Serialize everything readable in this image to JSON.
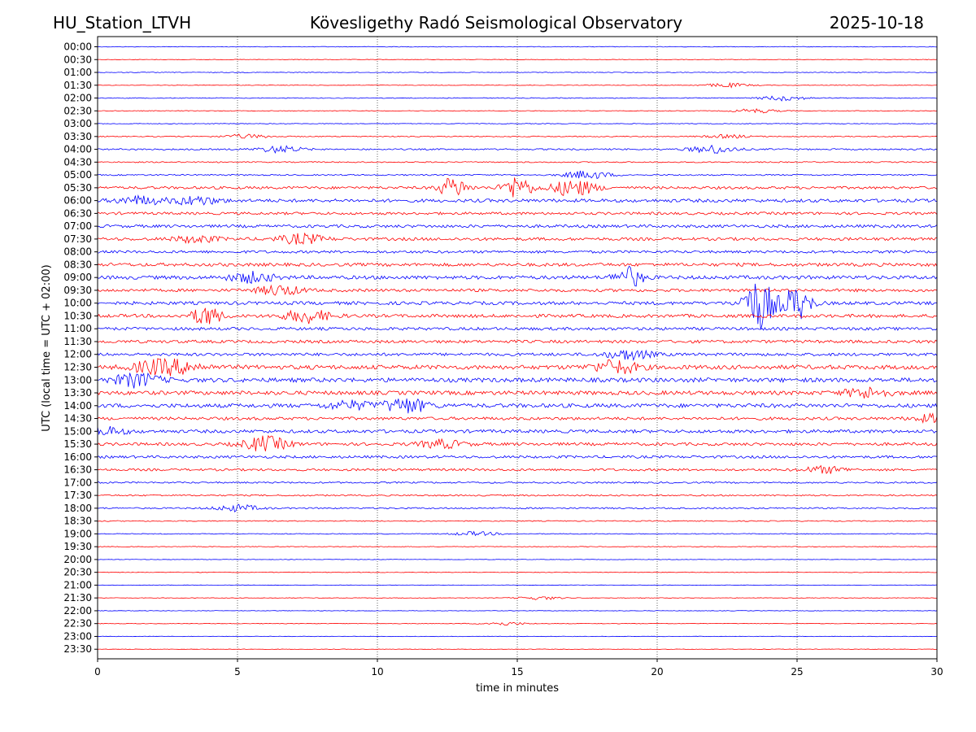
{
  "header": {
    "station": "HU_Station_LTVH",
    "observatory": "Kövesligethy Radó Seismological Observatory",
    "date": "2025-10-18"
  },
  "chart_data": {
    "type": "line",
    "subtype": "helicorder",
    "xlabel": "time in minutes",
    "ylabel": "UTC (local time = UTC + 02:00)",
    "xlim": [
      0,
      30
    ],
    "x_ticks": [
      0,
      5,
      10,
      15,
      20,
      25,
      30
    ],
    "x_tick_labels": [
      "0",
      "5",
      "10",
      "15",
      "20",
      "25",
      "30"
    ],
    "grid": "vertical dotted lines at x ticks",
    "colors": [
      "#0000ff",
      "#ff0000"
    ],
    "row_labels": [
      "00:00",
      "00:30",
      "01:00",
      "01:30",
      "02:00",
      "02:30",
      "03:00",
      "03:30",
      "04:00",
      "04:30",
      "05:00",
      "05:30",
      "06:00",
      "06:30",
      "07:00",
      "07:30",
      "08:00",
      "08:30",
      "09:00",
      "09:30",
      "10:00",
      "10:30",
      "11:00",
      "11:30",
      "12:00",
      "12:30",
      "13:00",
      "13:30",
      "14:00",
      "14:30",
      "15:00",
      "15:30",
      "16:00",
      "16:30",
      "17:00",
      "17:30",
      "18:00",
      "18:30",
      "19:00",
      "19:30",
      "20:00",
      "20:30",
      "21:00",
      "21:30",
      "22:00",
      "22:30",
      "23:00",
      "23:30"
    ],
    "noise_levels": [
      0.4,
      0.35,
      0.4,
      0.35,
      0.5,
      0.4,
      0.4,
      0.6,
      0.9,
      0.7,
      0.8,
      1.6,
      2.0,
      1.6,
      1.8,
      1.8,
      1.6,
      2.0,
      2.2,
      1.8,
      2.0,
      2.0,
      1.8,
      1.8,
      1.8,
      2.6,
      2.6,
      2.4,
      2.4,
      1.8,
      2.0,
      1.8,
      1.6,
      1.4,
      1.0,
      0.9,
      0.9,
      0.6,
      0.5,
      0.4,
      0.3,
      0.4,
      0.3,
      0.35,
      0.3,
      0.35,
      0.3,
      0.3
    ],
    "events": [
      {
        "row": 3,
        "minute": 22.5,
        "amp": 2.5
      },
      {
        "row": 4,
        "minute": 24.5,
        "amp": 3
      },
      {
        "row": 5,
        "minute": 23.5,
        "amp": 2.5
      },
      {
        "row": 7,
        "minute": 5.3,
        "amp": 2.5
      },
      {
        "row": 7,
        "minute": 22.5,
        "amp": 2
      },
      {
        "row": 8,
        "minute": 6.5,
        "amp": 4
      },
      {
        "row": 8,
        "minute": 22,
        "amp": 5
      },
      {
        "row": 10,
        "minute": 17.5,
        "amp": 5
      },
      {
        "row": 11,
        "minute": 12.7,
        "amp": 12
      },
      {
        "row": 11,
        "minute": 15,
        "amp": 14
      },
      {
        "row": 11,
        "minute": 17,
        "amp": 10
      },
      {
        "row": 12,
        "minute": 1.5,
        "amp": 5
      },
      {
        "row": 12,
        "minute": 3.5,
        "amp": 5
      },
      {
        "row": 15,
        "minute": 7.3,
        "amp": 6
      },
      {
        "row": 15,
        "minute": 3.5,
        "amp": 4
      },
      {
        "row": 18,
        "minute": 19,
        "amp": 12
      },
      {
        "row": 18,
        "minute": 5.5,
        "amp": 6
      },
      {
        "row": 19,
        "minute": 6.5,
        "amp": 6
      },
      {
        "row": 20,
        "minute": 23.5,
        "amp": 18
      },
      {
        "row": 20,
        "minute": 23.8,
        "amp": 16
      },
      {
        "row": 20,
        "minute": 25,
        "amp": 20
      },
      {
        "row": 21,
        "minute": 3.9,
        "amp": 12
      },
      {
        "row": 21,
        "minute": 7.5,
        "amp": 8
      },
      {
        "row": 24,
        "minute": 19,
        "amp": 6
      },
      {
        "row": 25,
        "minute": 2,
        "amp": 7
      },
      {
        "row": 25,
        "minute": 3,
        "amp": 6
      },
      {
        "row": 25,
        "minute": 18.5,
        "amp": 8
      },
      {
        "row": 26,
        "minute": 1.4,
        "amp": 8
      },
      {
        "row": 27,
        "minute": 27.5,
        "amp": 6
      },
      {
        "row": 28,
        "minute": 11,
        "amp": 9
      },
      {
        "row": 28,
        "minute": 9,
        "amp": 5
      },
      {
        "row": 29,
        "minute": 30,
        "amp": 5
      },
      {
        "row": 30,
        "minute": 0.2,
        "amp": 5
      },
      {
        "row": 31,
        "minute": 6,
        "amp": 9
      },
      {
        "row": 31,
        "minute": 12.3,
        "amp": 5
      },
      {
        "row": 33,
        "minute": 26,
        "amp": 4
      },
      {
        "row": 36,
        "minute": 5,
        "amp": 4
      },
      {
        "row": 38,
        "minute": 13.5,
        "amp": 2.5
      },
      {
        "row": 43,
        "minute": 15.8,
        "amp": 2
      },
      {
        "row": 45,
        "minute": 14.5,
        "amp": 2
      }
    ]
  }
}
